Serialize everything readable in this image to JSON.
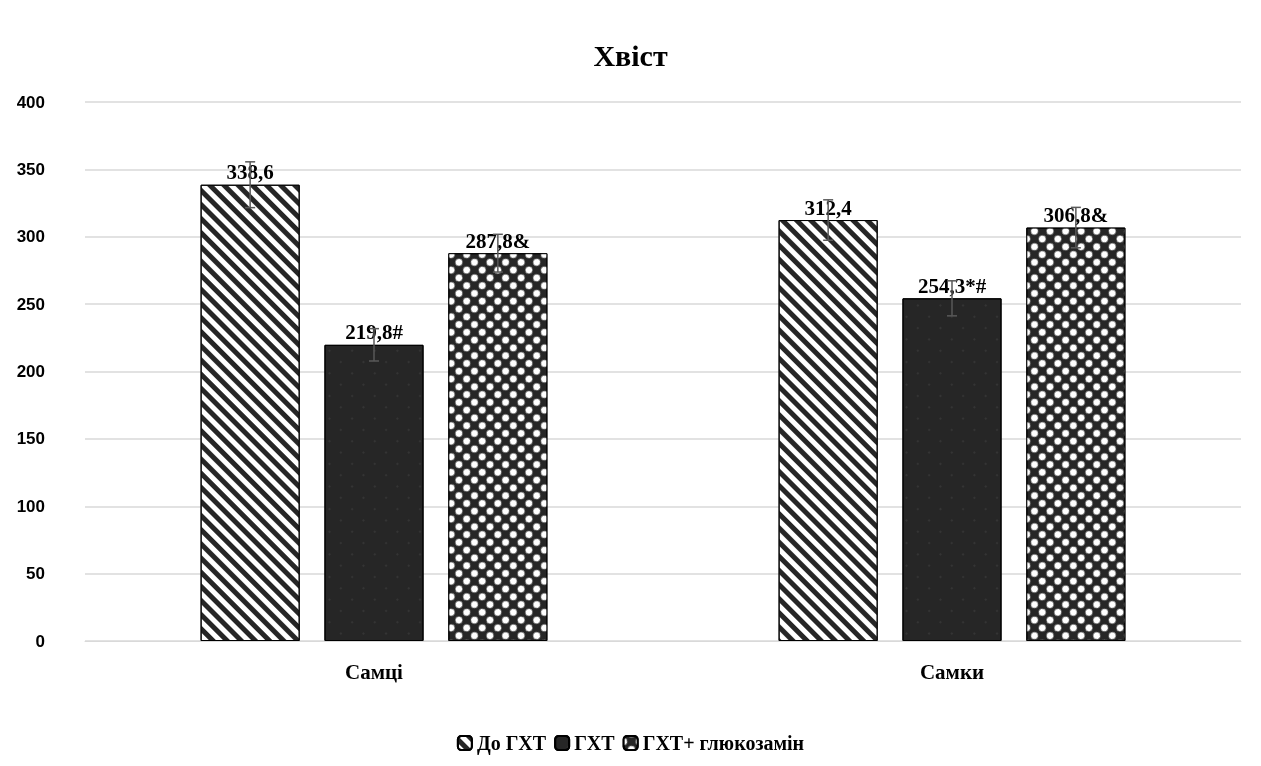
{
  "chart_data": {
    "type": "bar",
    "title": "Хвіст",
    "categories": [
      "Самці",
      "Самки"
    ],
    "series": [
      {
        "name": "До ГХТ",
        "color": "#ffffff",
        "values": [
          338.6,
          312.4
        ],
        "errors": [
          17,
          15
        ],
        "value_labels": [
          "338,6",
          "312,4"
        ]
      },
      {
        "name": "ГХТ",
        "color": "#262626",
        "values": [
          219.8,
          254.3
        ],
        "errors": [
          12,
          13
        ],
        "value_labels": [
          "219,8#",
          "254,3*#"
        ]
      },
      {
        "name": "ГХТ+ глюкозамін",
        "color": "#262626",
        "values": [
          287.8,
          306.8
        ],
        "errors": [
          14,
          15
        ],
        "value_labels": [
          "287,8&",
          "306,8&"
        ]
      }
    ],
    "ylim": [
      0,
      400
    ],
    "yticks": [
      0,
      50,
      100,
      150,
      200,
      250,
      300,
      350,
      400
    ],
    "grid": "y",
    "legend": "bottom"
  }
}
